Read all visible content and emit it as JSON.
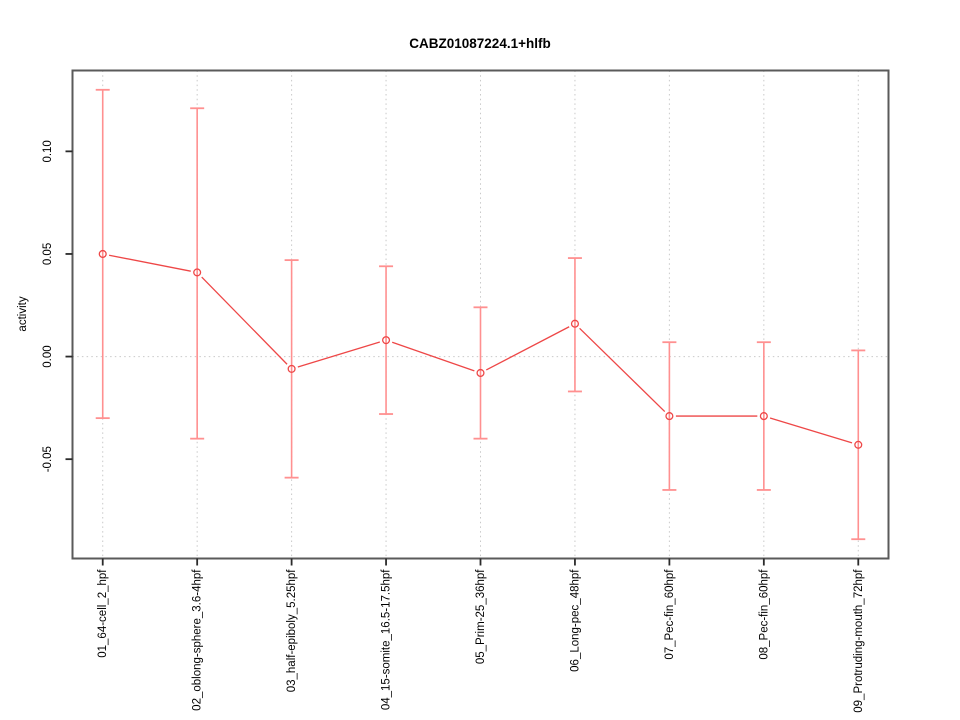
{
  "chart_data": {
    "type": "line",
    "title": "CABZ01087224.1+hlfb",
    "xlabel": "",
    "ylabel": "activity",
    "categories": [
      "01_64-cell_2_hpf",
      "02_oblong-sphere_3.6-4hpf",
      "03_half-epiboly_5.25hpf",
      "04_15-somite_16.5-17.5hpf",
      "05_Prim-25_36hpf",
      "06_Long-pec_48hpf",
      "07_Pec-fin_60hpf",
      "08_Pec-fin_60hpf",
      "09_Protruding-mouth_72hpf"
    ],
    "series": [
      {
        "name": "activity",
        "values": [
          0.05,
          0.041,
          -0.006,
          0.008,
          -0.008,
          0.016,
          -0.029,
          -0.029,
          -0.043
        ],
        "upper": [
          0.13,
          0.121,
          0.047,
          0.044,
          0.024,
          0.048,
          0.007,
          0.007,
          0.003
        ],
        "lower": [
          -0.03,
          -0.04,
          -0.059,
          -0.028,
          -0.04,
          -0.017,
          -0.065,
          -0.065,
          -0.089
        ]
      }
    ],
    "yticks": [
      -0.05,
      0.0,
      0.05,
      0.1
    ],
    "ytick_labels": [
      "-0.05",
      "0.00",
      "0.05",
      "0.10"
    ],
    "ylim": [
      -0.0984,
      0.1394
    ],
    "xlim": [
      0.68,
      9.32
    ],
    "legend": "none",
    "grid": "dotted vertical line at each category; dotted horizontal line at y=0",
    "colors": {
      "point": "#ee4747",
      "segment": "#ee4747",
      "error_bar": "#ff9090",
      "grid": "#c9c9c9",
      "frame": "#5a5a5a",
      "tick": "#2b2b2b",
      "text": "#000000",
      "background": "#ffffff"
    }
  }
}
